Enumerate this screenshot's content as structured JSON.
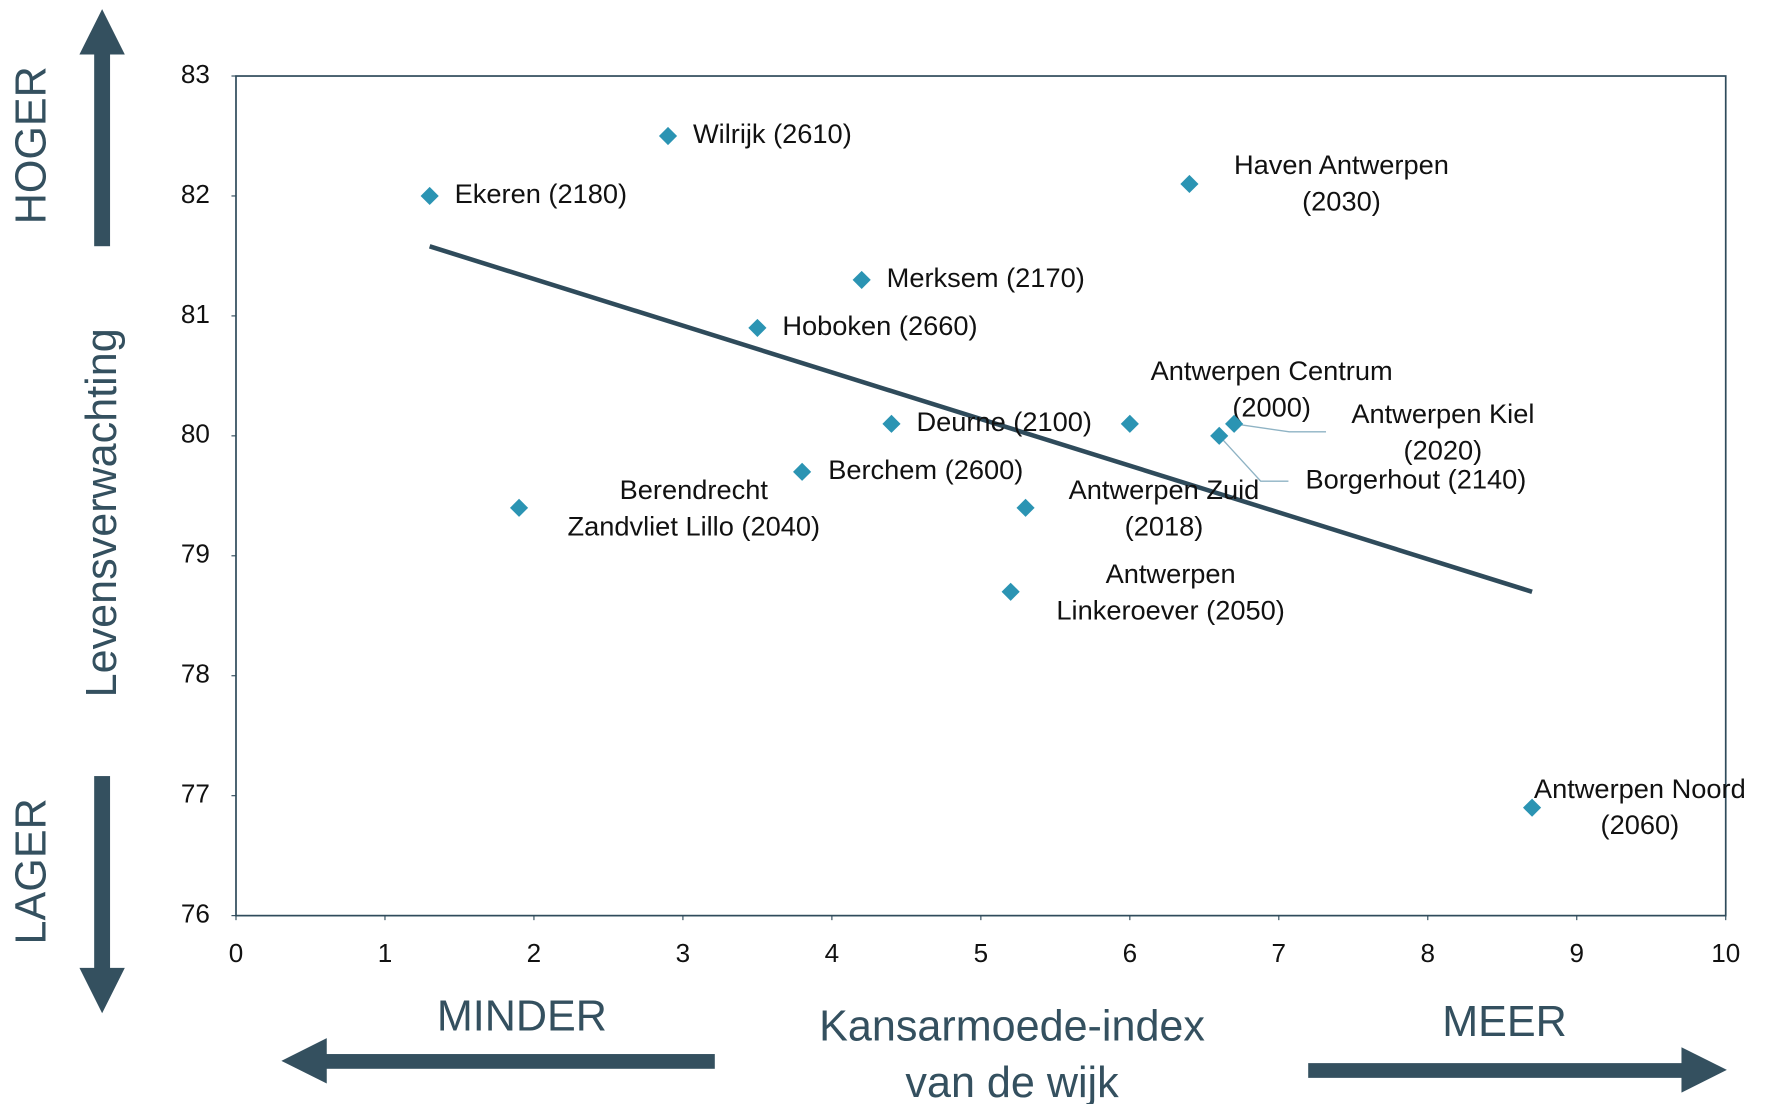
{
  "chart_data": {
    "type": "scatter",
    "ylabel": "Levensverwachting",
    "xlabel": [
      "Kansarmoede-index",
      "van de wijk"
    ],
    "annotations": {
      "up": "HOGER",
      "down": "LAGER",
      "left": "MINDER",
      "right": "MEER"
    },
    "x": [
      1.3,
      2.9,
      6.4,
      4.2,
      3.5,
      6.0,
      6.7,
      6.6,
      4.4,
      3.8,
      1.9,
      5.3,
      5.2,
      8.7
    ],
    "values": [
      82.0,
      82.5,
      82.1,
      81.3,
      80.9,
      80.1,
      80.1,
      80.0,
      80.1,
      79.7,
      79.4,
      79.4,
      78.7,
      76.9
    ],
    "point_labels": [
      [
        "Ekeren (2180)"
      ],
      [
        "Wilrijk (2610)"
      ],
      [
        "Haven Antwerpen",
        "(2030)"
      ],
      [
        "Merksem (2170)"
      ],
      [
        "Hoboken (2660)"
      ],
      [
        "Antwerpen Centrum",
        "(2000)"
      ],
      [
        "Antwerpen Kiel",
        "(2020)"
      ],
      [
        "Borgerhout (2140)"
      ],
      [
        "Deurne (2100)"
      ],
      [
        "Berchem (2600)"
      ],
      [
        "Berendrecht",
        "Zandvliet Lillo (2040)"
      ],
      [
        "Antwerpen Zuid",
        "(2018)"
      ],
      [
        "Antwerpen",
        "Linkeroever (2050)"
      ],
      [
        "Antwerpen Noord",
        "(2060)"
      ]
    ],
    "color": "#2b94b3",
    "trendline": {
      "x": [
        1.3,
        8.7
      ],
      "values": [
        81.58,
        78.7
      ],
      "color": "#2f4b5b"
    },
    "xlim": [
      0,
      10
    ],
    "ylim": [
      76,
      83
    ],
    "xticks": [
      0,
      1,
      2,
      3,
      4,
      5,
      6,
      7,
      8,
      9,
      10
    ],
    "yticks": [
      76,
      77,
      78,
      79,
      80,
      81,
      82,
      83
    ]
  }
}
